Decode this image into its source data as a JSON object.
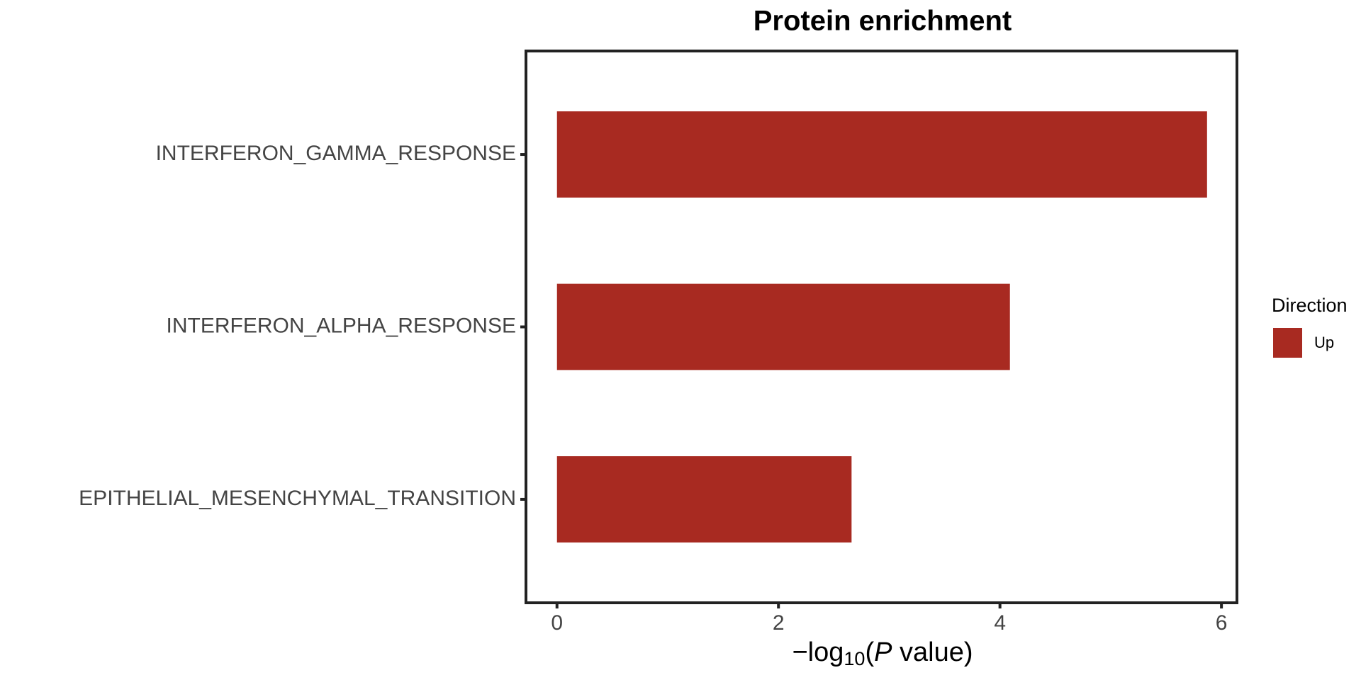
{
  "chart_data": {
    "type": "hbar",
    "title": "Protein enrichment",
    "categories": [
      "INTERFERON_GAMMA_RESPONSE",
      "INTERFERON_ALPHA_RESPONSE",
      "EPITHELIAL_MESENCHYMAL_TRANSITION"
    ],
    "series": [
      {
        "name": "Up",
        "color": "#a82a21",
        "values": [
          5.87,
          4.09,
          2.66
        ]
      }
    ],
    "x_label_parts": [
      "−log",
      "10",
      "(",
      "P",
      " value)"
    ],
    "legend_title": "Direction",
    "xlim": [
      -0.28,
      6.14
    ],
    "xticks": [
      0,
      2,
      4,
      6
    ],
    "grid": false,
    "legend": "right"
  }
}
